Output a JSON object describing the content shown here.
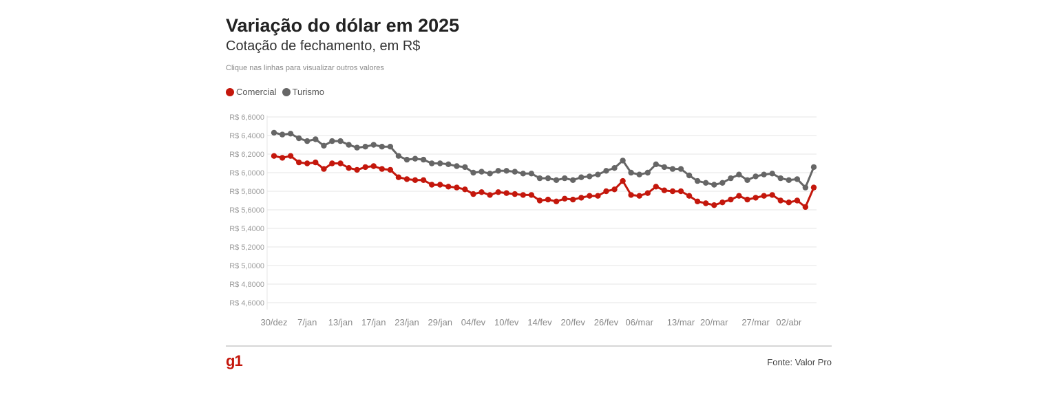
{
  "header": {
    "title": "Variação do dólar em 2025",
    "subtitle": "Cotação de fechamento, em R$",
    "note": "Clique nas linhas para visualizar outros valores"
  },
  "footer": {
    "logo": "g1",
    "source": "Fonte: Valor Pro"
  },
  "colors": {
    "comercial": "#c4170c",
    "turismo": "#666666",
    "grid": "#e6e6e6"
  },
  "chart_data": {
    "type": "line",
    "title": "Variação do dólar em 2025",
    "subtitle": "Cotação de fechamento, em R$",
    "legend_position": "top-left",
    "grid": true,
    "ylim": [
      4.6,
      6.6
    ],
    "yticks": [
      {
        "value": 6.6,
        "label": "R$ 6,6000"
      },
      {
        "value": 6.4,
        "label": "R$ 6,4000"
      },
      {
        "value": 6.2,
        "label": "R$ 6,2000"
      },
      {
        "value": 6.0,
        "label": "R$ 6,0000"
      },
      {
        "value": 5.8,
        "label": "R$ 5,8000"
      },
      {
        "value": 5.6,
        "label": "R$ 5,6000"
      },
      {
        "value": 5.4,
        "label": "R$ 5,4000"
      },
      {
        "value": 5.2,
        "label": "R$ 5,2000"
      },
      {
        "value": 5.0,
        "label": "R$ 5,0000"
      },
      {
        "value": 4.8,
        "label": "R$ 4,8000"
      },
      {
        "value": 4.6,
        "label": "R$ 4,6000"
      }
    ],
    "xticks": [
      {
        "index": 0,
        "label": "30/dez"
      },
      {
        "index": 4,
        "label": "7/jan"
      },
      {
        "index": 8,
        "label": "13/jan"
      },
      {
        "index": 12,
        "label": "17/jan"
      },
      {
        "index": 16,
        "label": "23/jan"
      },
      {
        "index": 20,
        "label": "29/jan"
      },
      {
        "index": 24,
        "label": "04/fev"
      },
      {
        "index": 28,
        "label": "10/fev"
      },
      {
        "index": 32,
        "label": "14/fev"
      },
      {
        "index": 36,
        "label": "20/fev"
      },
      {
        "index": 40,
        "label": "26/fev"
      },
      {
        "index": 44,
        "label": "06/mar"
      },
      {
        "index": 49,
        "label": "13/mar"
      },
      {
        "index": 53,
        "label": "20/mar"
      },
      {
        "index": 58,
        "label": "27/mar"
      },
      {
        "index": 62,
        "label": "02/abr"
      }
    ],
    "series": [
      {
        "name": "Comercial",
        "color": "#c4170c",
        "values": [
          6.18,
          6.16,
          6.18,
          6.11,
          6.1,
          6.11,
          6.04,
          6.1,
          6.1,
          6.05,
          6.03,
          6.06,
          6.07,
          6.04,
          6.03,
          5.95,
          5.93,
          5.92,
          5.92,
          5.87,
          5.87,
          5.85,
          5.84,
          5.82,
          5.77,
          5.79,
          5.76,
          5.79,
          5.78,
          5.77,
          5.76,
          5.76,
          5.7,
          5.71,
          5.69,
          5.72,
          5.71,
          5.73,
          5.75,
          5.75,
          5.8,
          5.82,
          5.91,
          5.76,
          5.75,
          5.78,
          5.85,
          5.81,
          5.8,
          5.8,
          5.75,
          5.69,
          5.67,
          5.65,
          5.68,
          5.71,
          5.75,
          5.71,
          5.73,
          5.75,
          5.76,
          5.7,
          5.68,
          5.7,
          5.63,
          5.84
        ]
      },
      {
        "name": "Turismo",
        "color": "#666666",
        "values": [
          6.43,
          6.41,
          6.42,
          6.37,
          6.34,
          6.36,
          6.29,
          6.34,
          6.34,
          6.3,
          6.27,
          6.28,
          6.3,
          6.28,
          6.28,
          6.18,
          6.14,
          6.15,
          6.14,
          6.1,
          6.1,
          6.09,
          6.07,
          6.06,
          6.0,
          6.01,
          5.99,
          6.02,
          6.02,
          6.01,
          5.99,
          5.99,
          5.94,
          5.94,
          5.92,
          5.94,
          5.92,
          5.95,
          5.96,
          5.98,
          6.02,
          6.05,
          6.13,
          6.0,
          5.98,
          6.0,
          6.09,
          6.06,
          6.04,
          6.04,
          5.97,
          5.91,
          5.89,
          5.87,
          5.89,
          5.94,
          5.98,
          5.92,
          5.96,
          5.98,
          5.99,
          5.94,
          5.92,
          5.93,
          5.84,
          6.06
        ]
      }
    ]
  }
}
